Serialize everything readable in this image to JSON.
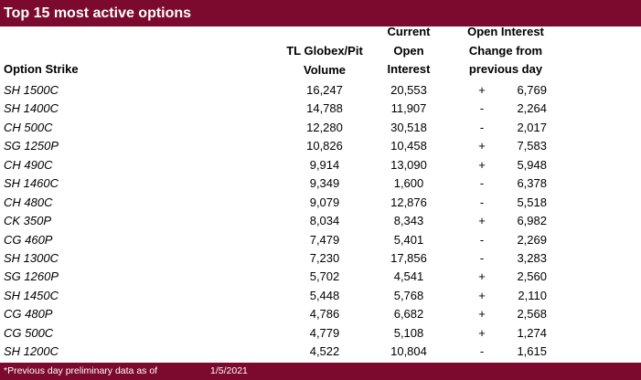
{
  "title": "Top 15 most active options",
  "headers": {
    "strike": "Option Strike",
    "volume": [
      "TL Globex/Pit",
      "Volume"
    ],
    "open_interest": [
      "Current",
      "Open",
      "Interest"
    ],
    "change": [
      "Open Interest",
      "Change from",
      "previous day"
    ]
  },
  "rows": [
    {
      "strike": "SH 1500C",
      "volume": "16,247",
      "oi": "20,553",
      "sign": "+",
      "change": "6,769"
    },
    {
      "strike": "SH 1400C",
      "volume": "14,788",
      "oi": "11,907",
      "sign": "-",
      "change": "2,264"
    },
    {
      "strike": "CH 500C",
      "volume": "12,280",
      "oi": "30,518",
      "sign": "-",
      "change": "2,017"
    },
    {
      "strike": "SG 1250P",
      "volume": "10,826",
      "oi": "10,458",
      "sign": "+",
      "change": "7,583"
    },
    {
      "strike": "CH 490C",
      "volume": "9,914",
      "oi": "13,090",
      "sign": "+",
      "change": "5,948"
    },
    {
      "strike": "SH 1460C",
      "volume": "9,349",
      "oi": "1,600",
      "sign": "-",
      "change": "6,378"
    },
    {
      "strike": "CH 480C",
      "volume": "9,079",
      "oi": "12,876",
      "sign": "-",
      "change": "5,518"
    },
    {
      "strike": "CK 350P",
      "volume": "8,034",
      "oi": "8,343",
      "sign": "+",
      "change": "6,982"
    },
    {
      "strike": "CG 460P",
      "volume": "7,479",
      "oi": "5,401",
      "sign": "-",
      "change": "2,269"
    },
    {
      "strike": "SH 1300C",
      "volume": "7,230",
      "oi": "17,856",
      "sign": "-",
      "change": "3,283"
    },
    {
      "strike": "SG 1260P",
      "volume": "5,702",
      "oi": "4,541",
      "sign": "+",
      "change": "2,560"
    },
    {
      "strike": "SH 1450C",
      "volume": "5,448",
      "oi": "5,768",
      "sign": "+",
      "change": "2,110"
    },
    {
      "strike": "CG 480P",
      "volume": "4,786",
      "oi": "6,682",
      "sign": "+",
      "change": "2,568"
    },
    {
      "strike": "CG 500C",
      "volume": "4,779",
      "oi": "5,108",
      "sign": "+",
      "change": "1,274"
    },
    {
      "strike": "SH 1200C",
      "volume": "4,522",
      "oi": "10,804",
      "sign": "-",
      "change": "1,615"
    }
  ],
  "footer": {
    "note": "*Previous day preliminary data as of",
    "date": "1/5/2021"
  },
  "colors": {
    "accent": "#7c0a2e"
  }
}
